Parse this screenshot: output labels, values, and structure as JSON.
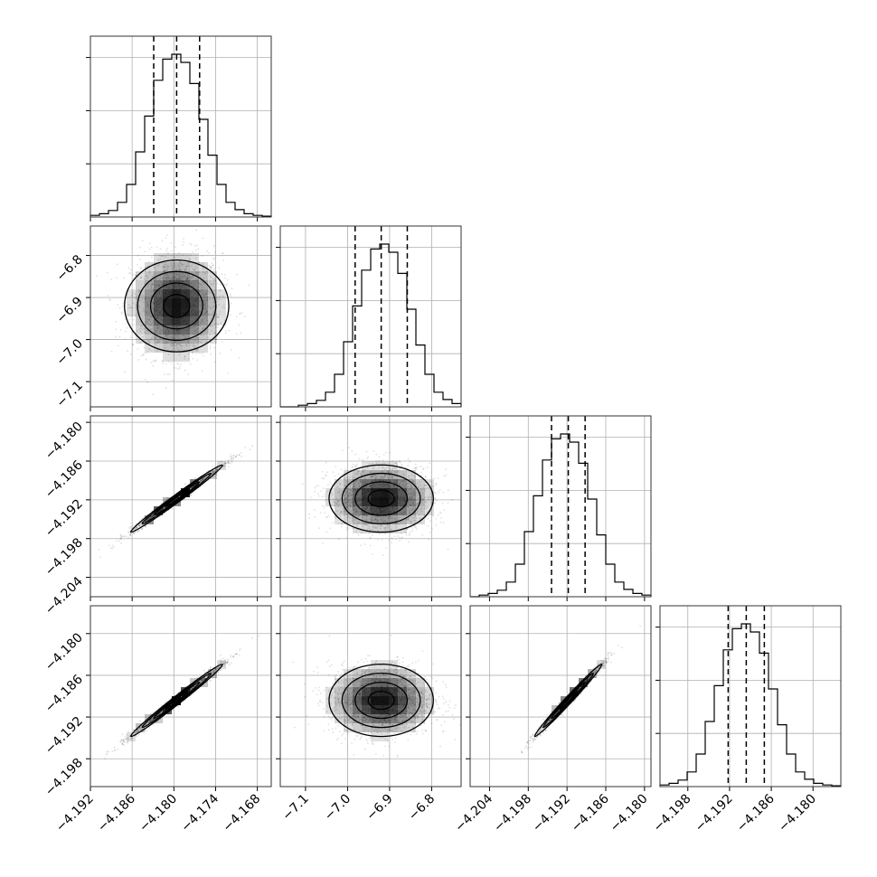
{
  "chart_data": {
    "type": "corner",
    "parameters": [
      {
        "range": [
          -4.192,
          -4.166
        ],
        "mean": -4.1796,
        "sd": 0.0033,
        "quantiles": [
          -4.1829,
          -4.1796,
          -4.1763
        ],
        "ticks": [
          -4.192,
          -4.186,
          -4.18,
          -4.174,
          -4.168
        ],
        "tick_labels": [
          "−4.192",
          "−4.186",
          "−4.180",
          "−4.174",
          "−4.168"
        ]
      },
      {
        "range": [
          -7.16,
          -6.73
        ],
        "mean": -6.92,
        "sd": 0.062,
        "quantiles": [
          -6.982,
          -6.92,
          -6.858
        ],
        "ticks": [
          -7.1,
          -7.0,
          -6.9,
          -6.8
        ],
        "tick_labels": [
          "−7.1",
          "−7.0",
          "−6.9",
          "−6.8"
        ]
      },
      {
        "range": [
          -4.207,
          -4.179
        ],
        "mean": -4.1918,
        "sd": 0.0026,
        "quantiles": [
          -4.1944,
          -4.1918,
          -4.1892
        ],
        "ticks": [
          -4.204,
          -4.198,
          -4.192,
          -4.186,
          -4.18
        ],
        "tick_labels": [
          "−4.204",
          "−4.198",
          "−4.192",
          "−4.186",
          "−4.180"
        ]
      },
      {
        "range": [
          -4.202,
          -4.176
        ],
        "mean": -4.1896,
        "sd": 0.0026,
        "quantiles": [
          -4.1922,
          -4.1896,
          -4.187
        ],
        "ticks": [
          -4.198,
          -4.192,
          -4.186,
          -4.18
        ],
        "tick_labels": [
          "−4.198",
          "−4.192",
          "−4.186",
          "−4.180"
        ]
      }
    ],
    "correlations": {
      "1-0": 0.0,
      "2-0": 0.99,
      "2-1": 0.0,
      "3-0": 0.99,
      "3-1": 0.0,
      "3-2": 0.99
    },
    "histogram_bins": 20,
    "histogram_shape": [
      0.01,
      0.02,
      0.04,
      0.09,
      0.2,
      0.4,
      0.62,
      0.84,
      0.97,
      1.0,
      0.95,
      0.82,
      0.6,
      0.38,
      0.2,
      0.09,
      0.045,
      0.02,
      0.01,
      0.005
    ],
    "contour_sigmas": [
      0.5,
      1.0,
      1.5,
      2.0
    ],
    "grid": true
  }
}
